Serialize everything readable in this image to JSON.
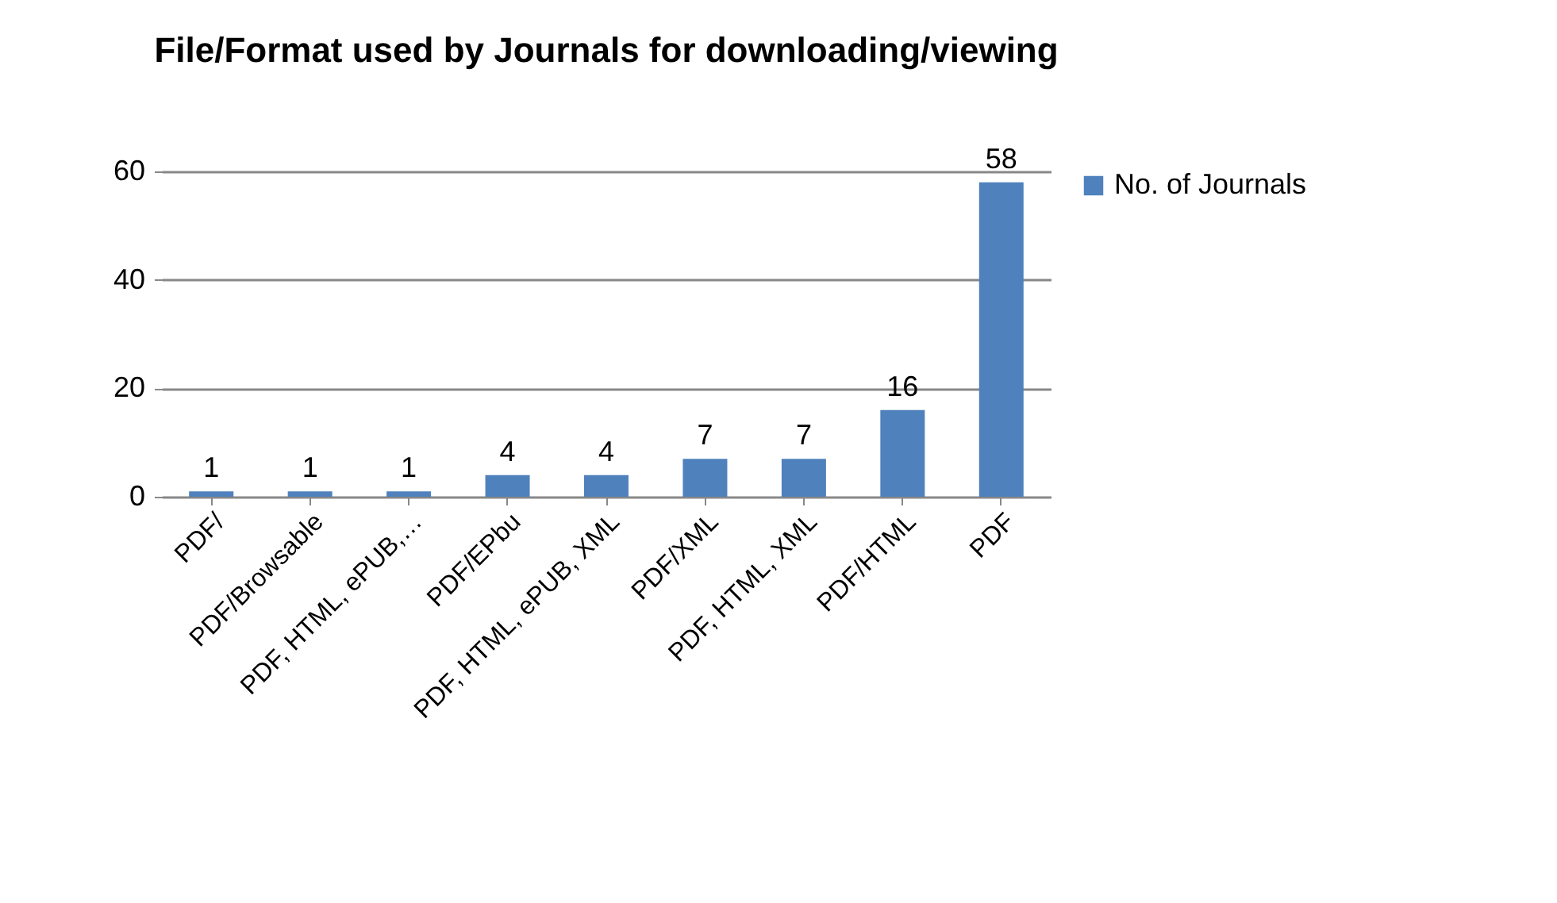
{
  "chart_data": {
    "type": "bar",
    "title": "File/Format used by Journals for downloading/viewing",
    "categories": [
      "PDF/",
      "PDF/Browsable",
      "PDF, HTML, ePUB,…",
      "PDF/EPbu",
      "PDF, HTML, ePUB, XML",
      "PDF/XML",
      "PDF, HTML, XML",
      "PDF/HTML",
      "PDF"
    ],
    "series": [
      {
        "name": "No. of Journals",
        "color": "#4f81bd",
        "values": [
          1,
          1,
          1,
          4,
          4,
          7,
          7,
          16,
          58
        ]
      }
    ],
    "ylim": [
      0,
      60
    ],
    "yticks": [
      0,
      20,
      40,
      60
    ],
    "grid": "y",
    "legend": "right",
    "data_labels": true
  }
}
